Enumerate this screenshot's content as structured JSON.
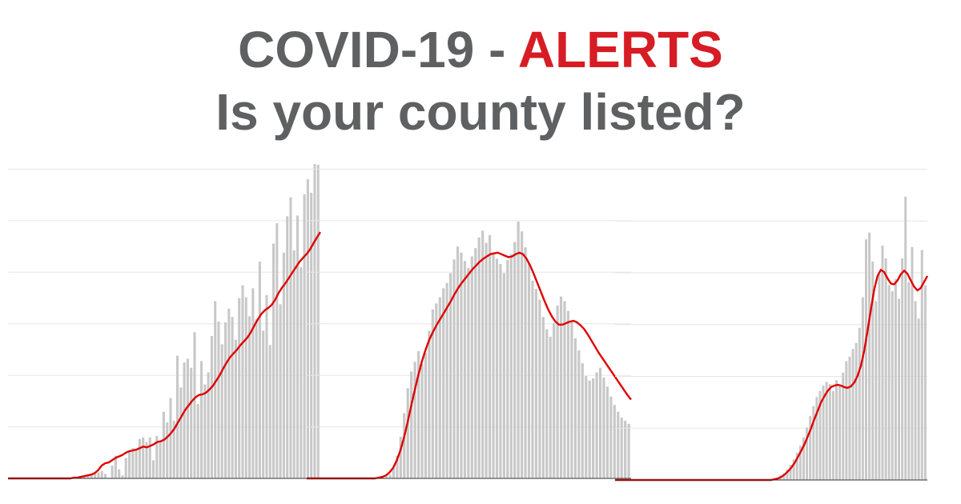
{
  "title": {
    "line1_prefix": "COVID-19 - ",
    "line1_highlight": "ALERTS",
    "line2": "Is your county listed?"
  },
  "colors": {
    "title_gray": "#5f6062",
    "alert_red": "#d61c24",
    "bar_gray": "#c8c8c8",
    "trend_red": "#e00000",
    "grid": "#e6e6e6",
    "axis": "#333333"
  },
  "chart_data": [
    {
      "type": "bar",
      "overlay": "line",
      "description_none": "",
      "x": "day index",
      "bars": [
        0,
        0,
        0,
        0,
        0,
        0,
        0,
        0,
        0,
        0,
        0,
        0,
        0,
        0,
        0,
        0,
        0,
        0,
        0,
        1,
        1,
        1,
        2,
        3,
        4,
        6,
        8,
        10,
        6,
        1,
        17,
        30,
        12,
        4,
        27,
        36,
        40,
        38,
        52,
        54,
        48,
        54,
        24,
        56,
        48,
        88,
        74,
        106,
        76,
        162,
        120,
        153,
        158,
        146,
        193,
        98,
        155,
        124,
        140,
        188,
        234,
        207,
        177,
        206,
        224,
        213,
        183,
        238,
        255,
        239,
        214,
        251,
        210,
        286,
        195,
        242,
        176,
        310,
        337,
        230,
        298,
        346,
        371,
        301,
        347,
        279,
        375,
        395,
        377,
        415,
        414
      ],
      "trend": [
        0,
        0,
        0,
        0,
        0,
        0,
        0,
        0,
        0,
        0,
        0,
        0,
        0,
        0,
        0,
        0,
        0,
        0,
        0,
        1,
        1,
        2,
        3,
        4,
        5,
        7,
        11,
        17,
        20,
        21,
        24,
        27,
        29,
        31,
        34,
        36,
        37,
        38,
        40,
        42,
        41,
        43,
        45,
        48,
        49,
        51,
        55,
        60,
        66,
        74,
        82,
        90,
        96,
        102,
        107,
        110,
        111,
        113,
        117,
        122,
        129,
        136,
        145,
        153,
        160,
        165,
        170,
        176,
        181,
        186,
        193,
        202,
        210,
        217,
        222,
        225,
        229,
        236,
        245,
        252,
        258,
        265,
        272,
        279,
        286,
        291,
        296,
        302,
        310,
        318,
        325
      ],
      "ylim": [
        0,
        415
      ]
    },
    {
      "type": "bar",
      "overlay": "line",
      "bars": [
        0,
        0,
        0,
        0,
        0,
        0,
        0,
        0,
        0,
        0,
        0,
        0,
        0,
        0,
        0,
        0,
        0,
        0,
        0,
        0,
        0,
        2,
        3,
        5,
        14,
        30,
        55,
        86,
        119,
        141,
        154,
        168,
        151,
        166,
        195,
        223,
        231,
        239,
        251,
        258,
        271,
        289,
        306,
        298,
        287,
        278,
        293,
        304,
        318,
        327,
        311,
        321,
        298,
        290,
        283,
        271,
        288,
        296,
        312,
        339,
        326,
        305,
        284,
        261,
        250,
        236,
        213,
        197,
        187,
        205,
        228,
        240,
        234,
        221,
        208,
        185,
        169,
        152,
        135,
        129,
        132,
        140,
        146,
        133,
        121,
        108,
        97,
        88,
        80,
        76,
        72
      ],
      "trend": [
        0,
        0,
        0,
        0,
        0,
        0,
        0,
        0,
        0,
        0,
        0,
        0,
        0,
        0,
        0,
        0,
        0,
        0,
        0,
        0,
        1,
        2,
        4,
        8,
        14,
        24,
        37,
        54,
        74,
        96,
        117,
        137,
        155,
        170,
        183,
        193,
        202,
        210,
        218,
        226,
        234,
        243,
        251,
        258,
        264,
        270,
        276,
        281,
        286,
        290,
        293,
        296,
        297,
        298,
        296,
        294,
        292,
        293,
        296,
        298,
        296,
        290,
        281,
        270,
        258,
        246,
        234,
        223,
        214,
        207,
        203,
        203,
        205,
        207,
        208,
        206,
        202,
        197,
        190,
        182,
        174,
        166,
        159,
        152,
        145,
        138,
        131,
        124,
        117,
        110,
        104
      ],
      "ylim": [
        0,
        415
      ]
    },
    {
      "type": "bar",
      "overlay": "line",
      "bars": [
        0,
        0,
        0,
        0,
        0,
        0,
        0,
        0,
        0,
        0,
        0,
        0,
        0,
        0,
        0,
        0,
        0,
        0,
        0,
        0,
        0,
        0,
        0,
        0,
        0,
        0,
        0,
        0,
        0,
        0,
        0,
        0,
        0,
        0,
        0,
        0,
        0,
        0,
        0,
        0,
        0,
        0,
        0,
        0,
        0,
        0,
        0,
        1,
        2,
        3,
        6,
        9,
        14,
        20,
        27,
        36,
        45,
        56,
        69,
        84,
        97,
        109,
        117,
        124,
        129,
        126,
        117,
        131,
        125,
        141,
        156,
        162,
        172,
        180,
        200,
        240,
        316,
        325,
        287,
        235,
        270,
        308,
        291,
        256,
        248,
        264,
        238,
        291,
        372,
        260,
        306,
        235,
        212,
        302,
        256
      ],
      "trend": [
        0,
        0,
        0,
        0,
        0,
        0,
        0,
        0,
        0,
        0,
        0,
        0,
        0,
        0,
        0,
        0,
        0,
        0,
        0,
        0,
        0,
        0,
        0,
        0,
        0,
        0,
        0,
        0,
        0,
        0,
        0,
        0,
        0,
        0,
        0,
        0,
        0,
        0,
        0,
        0,
        0,
        0,
        0,
        0,
        0,
        0,
        0,
        0,
        1,
        2,
        4,
        7,
        11,
        16,
        22,
        30,
        38,
        47,
        57,
        68,
        80,
        91,
        102,
        110,
        117,
        122,
        124,
        125,
        124,
        122,
        121,
        123,
        128,
        137,
        150,
        170,
        196,
        224,
        250,
        268,
        276,
        273,
        265,
        258,
        257,
        262,
        270,
        275,
        271,
        262,
        254,
        249,
        252,
        260,
        268
      ],
      "ylim": [
        0,
        415
      ]
    }
  ]
}
